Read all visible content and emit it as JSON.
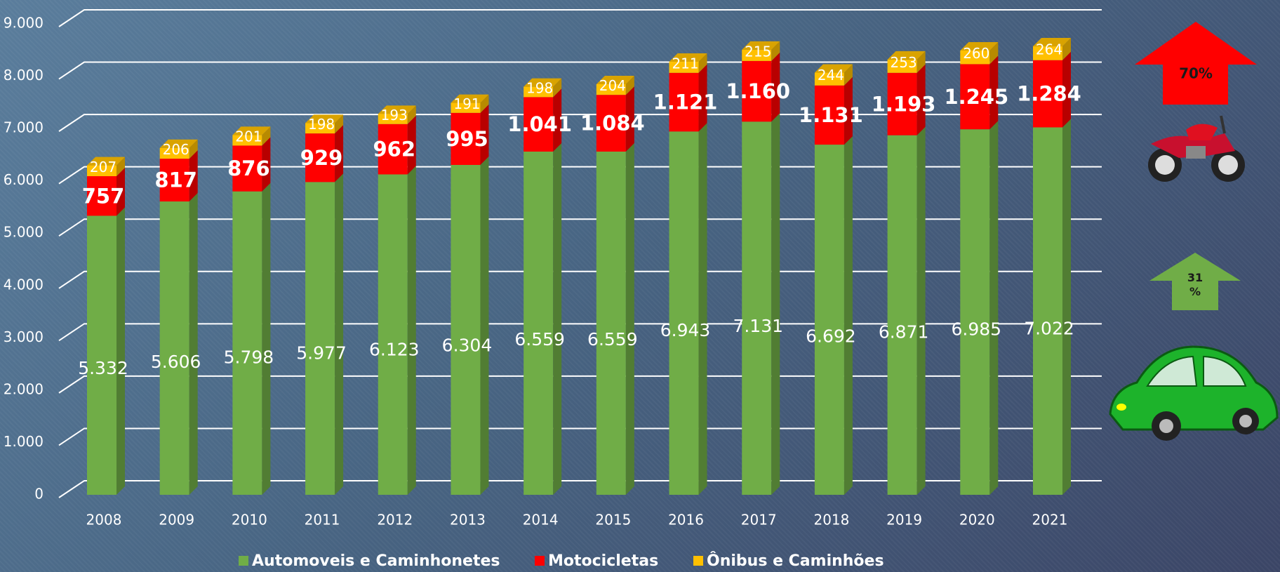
{
  "chart_data": {
    "type": "bar",
    "stacked": true,
    "categories": [
      "2008",
      "2009",
      "2010",
      "2011",
      "2012",
      "2013",
      "2014",
      "2015",
      "2016",
      "2017",
      "2018",
      "2019",
      "2020",
      "2021"
    ],
    "series": [
      {
        "name": "Automoveis e Caminhonetes",
        "color": "#70ad47",
        "values": [
          5332,
          5606,
          5798,
          5977,
          6123,
          6304,
          6559,
          6559,
          6943,
          7131,
          6692,
          6871,
          6985,
          7022
        ],
        "value_labels": [
          "5.332",
          "5.606",
          "5.798",
          "5.977",
          "6.123",
          "6.304",
          "6.559",
          "6.559",
          "6.943",
          "7.131",
          "6.692",
          "6.871",
          "6.985",
          "7.022"
        ]
      },
      {
        "name": "Motocicletas",
        "color": "#ff0000",
        "values": [
          757,
          817,
          876,
          929,
          962,
          995,
          1041,
          1084,
          1121,
          1160,
          1131,
          1193,
          1245,
          1284
        ],
        "value_labels": [
          "757",
          "817",
          "876",
          "929",
          "962",
          "995",
          "1.041",
          "1.084",
          "1.121",
          "1.160",
          "1.131",
          "1.193",
          "1.245",
          "1.284"
        ]
      },
      {
        "name": "Ônibus e Caminhões",
        "color": "#ffc000",
        "values": [
          207,
          206,
          201,
          198,
          193,
          191,
          198,
          204,
          211,
          215,
          244,
          253,
          260,
          264
        ]
      }
    ],
    "ylim": [
      0,
      9000
    ],
    "yticks": [
      0,
      {
        "value": 1000,
        "label": "1.000"
      },
      {
        "value": 2000,
        "label": "2.000"
      },
      {
        "value": 3000,
        "label": "3.000"
      },
      {
        "value": 4000,
        "label": "4.000"
      },
      {
        "value": 5000,
        "label": "5.000"
      },
      {
        "value": 6000,
        "label": "6.000"
      },
      {
        "value": 7000,
        "label": "7.000"
      },
      {
        "value": 8000,
        "label": "8.000"
      },
      {
        "value": 9000,
        "label": "9.000"
      }
    ],
    "grid": true,
    "legend": "bottom",
    "annotations": [
      "70%",
      "31 %"
    ]
  }
}
